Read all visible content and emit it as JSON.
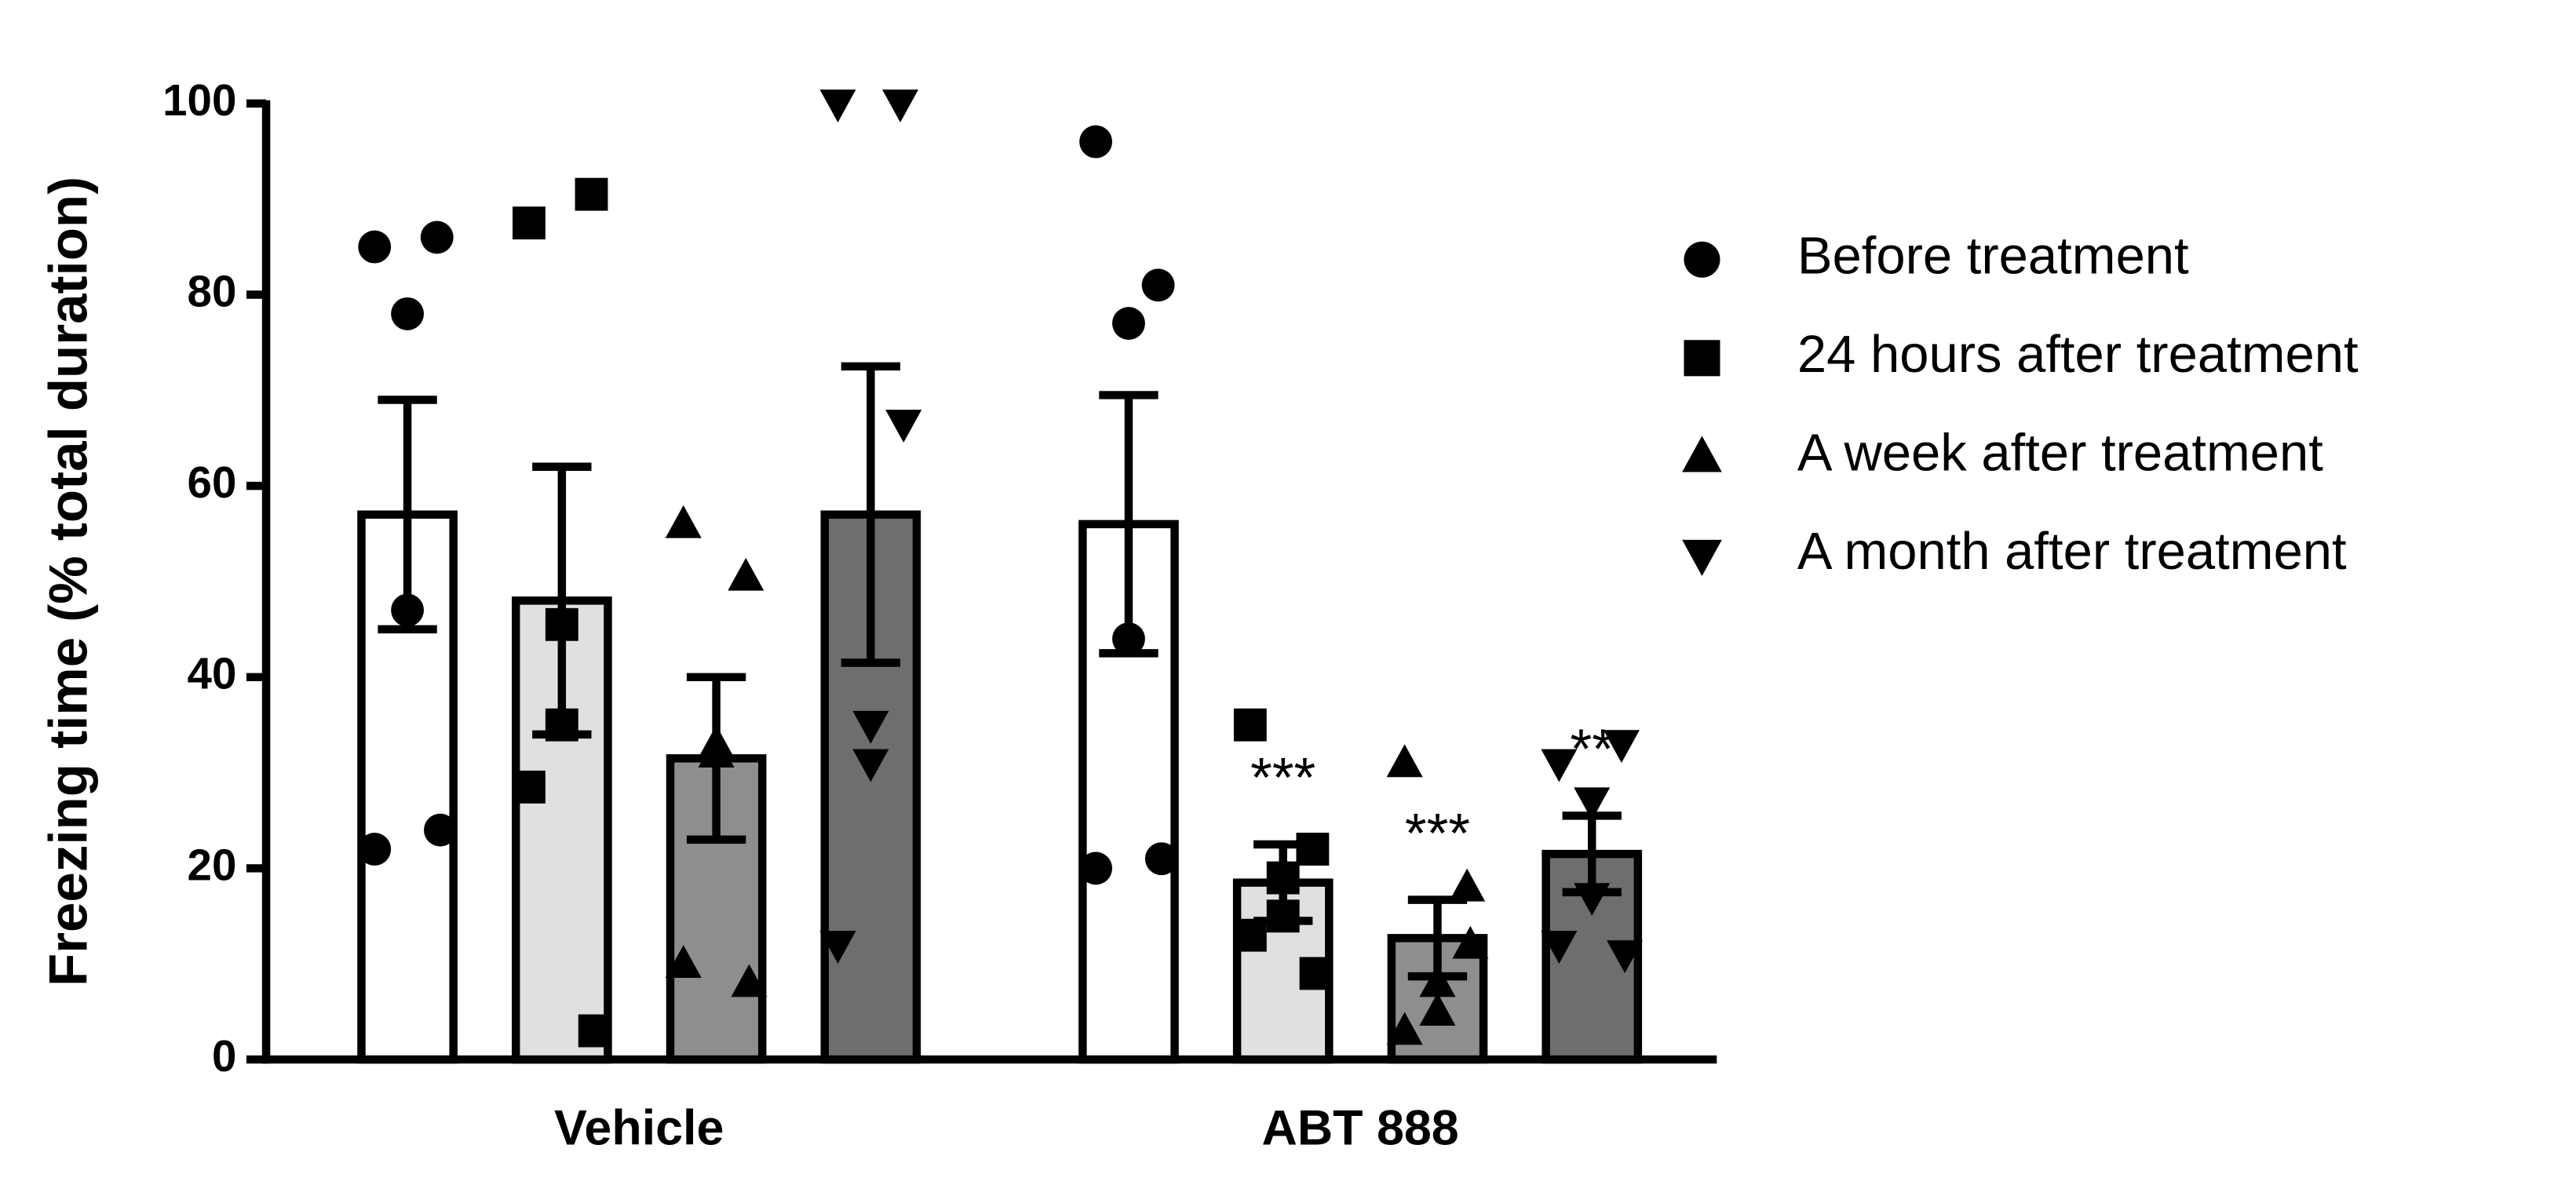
{
  "chart_data": {
    "type": "bar",
    "y_label": "Freezing time (% total duration)",
    "categories": [
      "Vehicle",
      "ABT 888"
    ],
    "ylim": [
      0,
      100
    ],
    "yticks": [
      0,
      20,
      40,
      60,
      80,
      100
    ],
    "legend": "right",
    "series": [
      {
        "name": "Before treatment",
        "color": "#ffffff",
        "marker": "circle",
        "values": [
          57,
          56
        ],
        "errors": [
          12,
          13.5
        ],
        "points": [
          [
            85,
            86,
            78,
            47,
            22,
            24
          ],
          [
            96,
            81,
            77,
            44,
            20,
            21
          ]
        ],
        "labels": [
          null,
          null
        ]
      },
      {
        "name": "24 hours after treatment",
        "color": "#e0e0e0",
        "marker": "square",
        "values": [
          48,
          18.5
        ],
        "errors": [
          14,
          4
        ],
        "points": [
          [
            87.5,
            90.5,
            45.5,
            35,
            28.5,
            3
          ],
          [
            35,
            22,
            19,
            15,
            13,
            9
          ]
        ],
        "labels": [
          null,
          "***"
        ]
      },
      {
        "name": "A week after treatment",
        "color": "#8e8e8e",
        "marker": "triangle-up",
        "values": [
          31.5,
          12.7
        ],
        "errors": [
          8.5,
          4
        ],
        "points": [
          [
            56,
            50.5,
            33,
            32,
            10,
            8
          ],
          [
            31,
            18,
            8,
            5,
            3,
            12
          ]
        ],
        "labels": [
          null,
          "***"
        ]
      },
      {
        "name": "A month after treatment",
        "color": "#6e6e6e",
        "marker": "triangle-down",
        "values": [
          57,
          21.5
        ],
        "errors": [
          15.5,
          4
        ],
        "points": [
          [
            100,
            100,
            35,
            31,
            12,
            66.5
          ],
          [
            31,
            33,
            27,
            17,
            12,
            11
          ]
        ],
        "labels": [
          null,
          "**"
        ]
      }
    ]
  }
}
